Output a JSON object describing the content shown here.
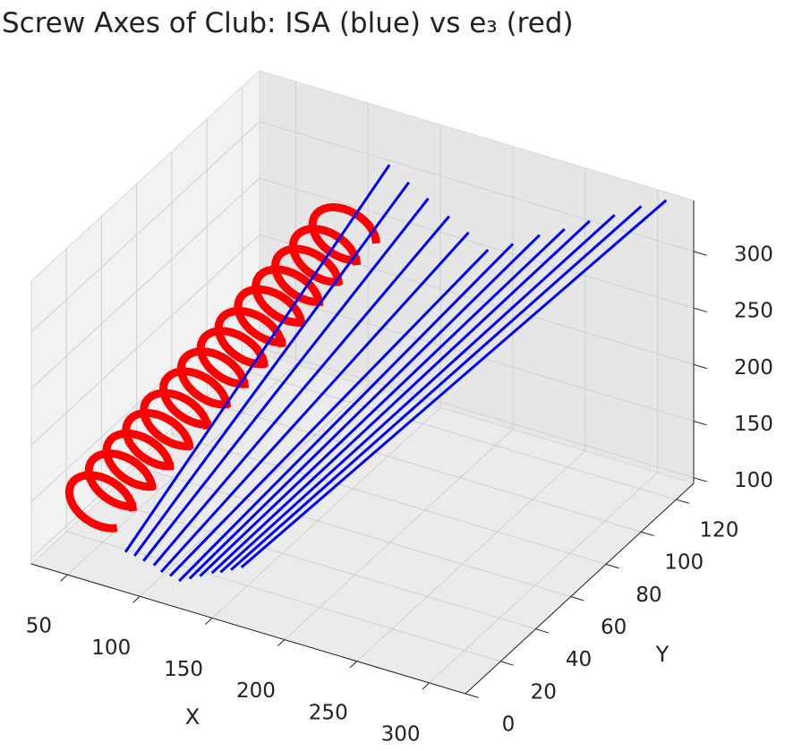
{
  "chart_data": {
    "type": "line3d",
    "title": "Screw Axes of Club: ISA (blue) vs e₃ (red)",
    "xlabel": "X",
    "ylabel": "Y",
    "xlim": [
      25,
      325
    ],
    "ylim": [
      0,
      130
    ],
    "zlim": [
      95,
      345
    ],
    "xticks": [
      50,
      100,
      150,
      200,
      250,
      300
    ],
    "yticks": [
      0,
      20,
      40,
      60,
      80,
      100,
      120
    ],
    "zticks": [
      100,
      150,
      200,
      250,
      300
    ],
    "grid": true,
    "series": [
      {
        "color": "#0000ff",
        "segments": [
          {
            "x": [
              84,
              139
            ],
            "y": [
              5,
              110
            ],
            "z": [
              121,
              334
            ]
          },
          {
            "x": [
              89,
              150
            ],
            "y": [
              6,
              112
            ],
            "z": [
              118,
              320
            ]
          },
          {
            "x": [
              94,
              161
            ],
            "y": [
              7,
              114
            ],
            "z": [
              114,
              307
            ]
          },
          {
            "x": [
              100,
              173
            ],
            "y": [
              8,
              116
            ],
            "z": [
              111,
              293
            ]
          },
          {
            "x": [
              105,
              184
            ],
            "y": [
              8,
              118
            ],
            "z": [
              107,
              280
            ]
          },
          {
            "x": [
              110,
              195
            ],
            "y": [
              9,
              120
            ],
            "z": [
              104,
              266
            ]
          },
          {
            "x": [
              115,
              211
            ],
            "y": [
              10,
              121
            ],
            "z": [
              100,
              276
            ]
          },
          {
            "x": [
              121,
              227
            ],
            "y": [
              11,
              123
            ],
            "z": [
              103,
              287
            ]
          },
          {
            "x": [
              127,
              243
            ],
            "y": [
              12,
              124
            ],
            "z": [
              106,
              297
            ]
          },
          {
            "x": [
              134,
              258
            ],
            "y": [
              13,
              126
            ],
            "z": [
              110,
              307
            ]
          },
          {
            "x": [
              140,
              274
            ],
            "y": [
              13,
              127
            ],
            "z": [
              113,
              317
            ]
          },
          {
            "x": [
              146,
              290
            ],
            "y": [
              14,
              129
            ],
            "z": [
              116,
              328
            ]
          },
          {
            "x": [
              152,
              306
            ],
            "y": [
              15,
              130
            ],
            "z": [
              119,
              338
            ]
          }
        ]
      },
      {
        "color": "#ff0000",
        "arcs": {
          "radius": 22,
          "x": [
            55,
            60,
            65,
            70,
            75,
            80,
            85,
            90,
            95,
            100,
            105,
            110,
            115,
            120
          ],
          "y": [
            15,
            22,
            28,
            35,
            41,
            48,
            54,
            61,
            67,
            74,
            80,
            87,
            93,
            100
          ],
          "z": [
            140,
            151,
            162,
            172,
            183,
            194,
            205,
            215,
            226,
            237,
            248,
            258,
            269,
            280
          ]
        }
      }
    ]
  }
}
